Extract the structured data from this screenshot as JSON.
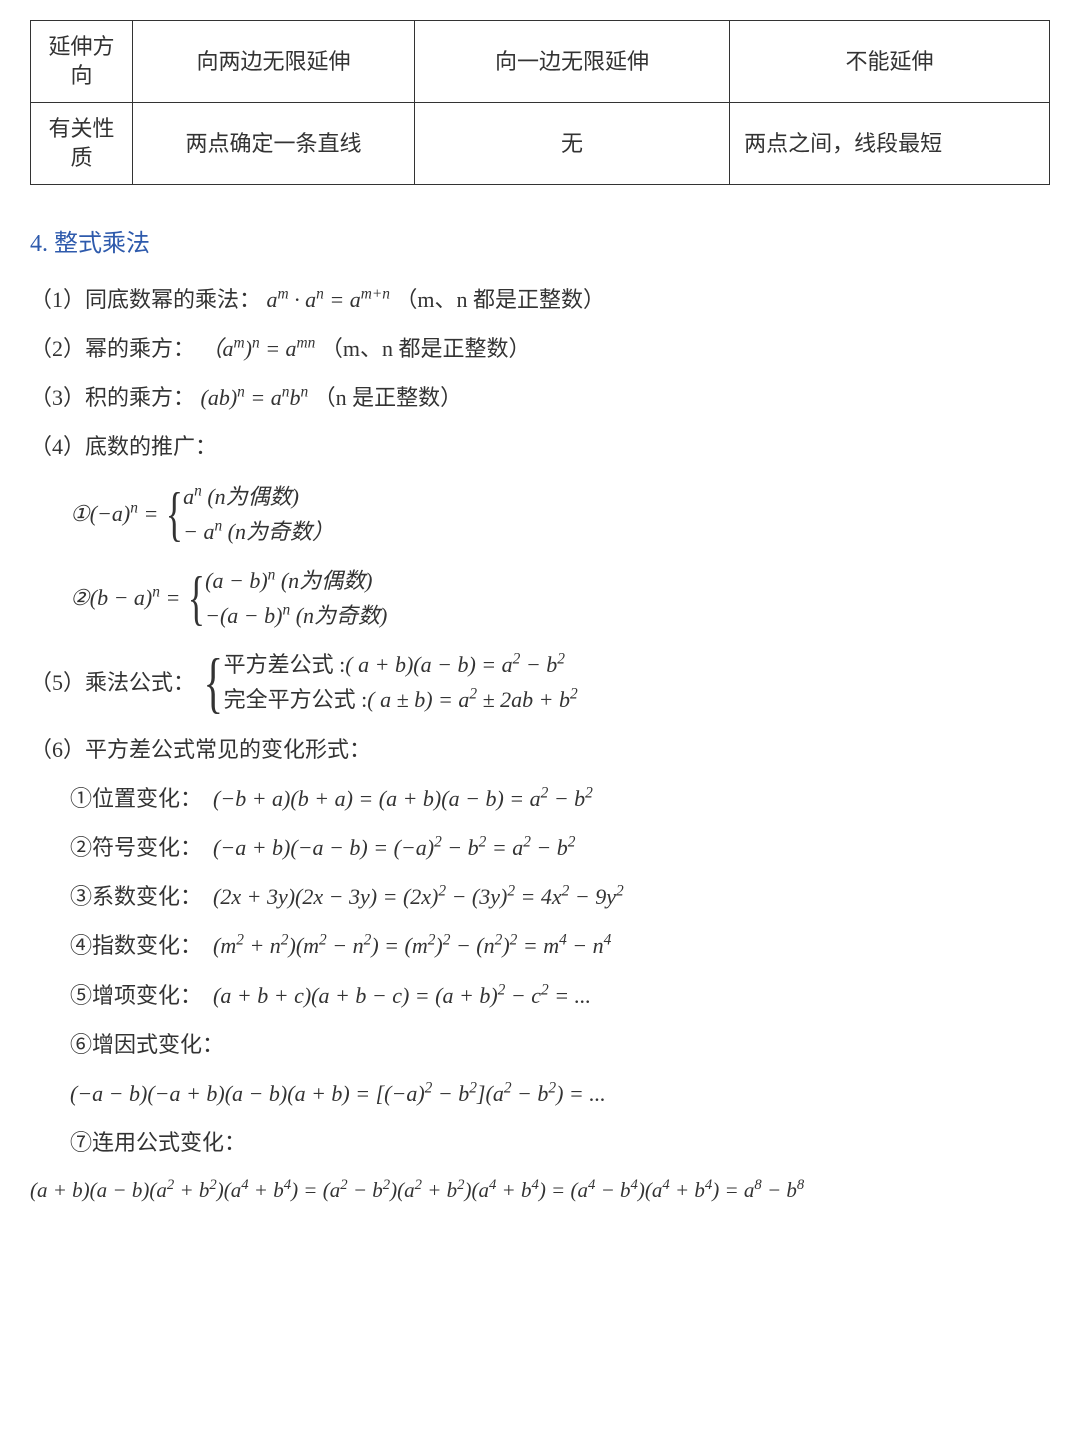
{
  "table": {
    "row1": {
      "label": "延伸方向",
      "c1": "向两边无限延伸",
      "c2": "向一边无限延伸",
      "c3": "不能延伸"
    },
    "row2": {
      "label": "有关性质",
      "c1": "两点确定一条直线",
      "c2": "无",
      "c3": "两点之间，线段最短"
    }
  },
  "heading": "4. 整式乘法",
  "items": {
    "p1_label": "（1）同底数幂的乘法：",
    "p1_formula": "aᵐ · aⁿ = aᵐ⁺ⁿ",
    "p1_note": "（m、n 都是正整数）",
    "p2_label": "（2）幂的乘方：",
    "p2_formula": "（aᵐ)ⁿ = aᵐⁿ",
    "p2_note": "（m、n 都是正整数）",
    "p3_label": "（3）积的乘方：",
    "p3_formula": "(ab)ⁿ = aⁿbⁿ",
    "p3_note": "（n 是正整数）",
    "p4_label": "（4）底数的推广：",
    "p4_1_left": "①(−a)ⁿ =",
    "p4_1_line1": "aⁿ (n为偶数)",
    "p4_1_line2": "− aⁿ (n为奇数）",
    "p4_2_left": "②(b − a)ⁿ =",
    "p4_2_line1": "(a − b)ⁿ (n为偶数)",
    "p4_2_line2": "−(a − b)ⁿ (n为奇数)",
    "p5_label": "（5）乘法公式：",
    "p5_line1": "平方差公式 :( a + b)(a − b) = a² − b²",
    "p5_line2": "完全平方公式 :( a ± b) = a² ± 2ab + b²",
    "p6_label": "（6）平方差公式常见的变化形式：",
    "p6_1": "①位置变化：　(−b + a)(b + a) = (a + b)(a − b) = a² − b²",
    "p6_2": "②符号变化：　(−a + b)(−a − b) = (−a)² − b² = a² − b²",
    "p6_3": "③系数变化：　(2x + 3y)(2x − 3y) = (2x)² − (3y)² = 4x² − 9y²",
    "p6_4": "④指数变化：　(m² + n²)(m² − n²) = (m²)² − (n²)² = m⁴ − n⁴",
    "p6_5": "⑤增项变化：　(a + b + c)(a + b − c) = (a + b)² − c² = ...",
    "p6_6_label": "⑥增因式变化：",
    "p6_6_formula": "(−a − b)(−a + b)(a − b)(a + b) = [(−a)² − b²](a² − b²) = ...",
    "p6_7_label": "⑦连用公式变化：",
    "p6_7_formula": "(a + b)(a − b)(a² + b²)(a⁴ + b⁴) = (a² − b²)(a² + b²)(a⁴ + b⁴) = (a⁴ − b⁴)(a⁴ + b⁴) = a⁸ − b⁸"
  }
}
